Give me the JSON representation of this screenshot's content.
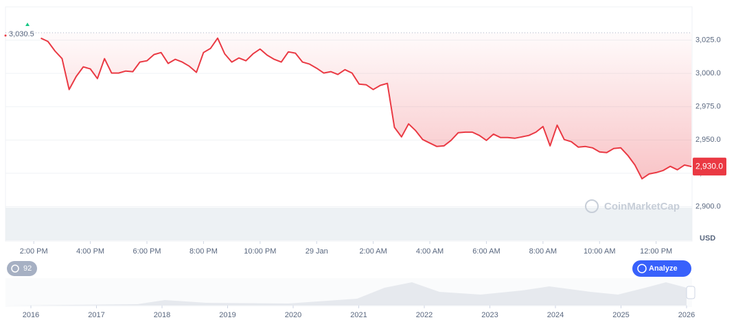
{
  "chart_data": {
    "type": "line",
    "color": "#ea3943",
    "x": [
      14.25,
      14.5,
      14.75,
      15,
      15.25,
      15.5,
      15.75,
      16,
      16.25,
      16.5,
      16.75,
      17,
      17.25,
      17.5,
      17.75,
      18,
      18.25,
      18.5,
      18.75,
      19,
      19.25,
      19.5,
      19.75,
      20,
      20.25,
      20.5,
      20.75,
      21,
      21.25,
      21.5,
      21.75,
      22,
      22.25,
      22.5,
      22.75,
      23,
      23.25,
      23.5,
      23.75,
      24,
      24.25,
      24.5,
      24.75,
      25,
      25.25,
      25.5,
      25.75,
      26,
      26.25,
      26.5,
      26.75,
      27,
      27.25,
      27.5,
      27.75,
      28,
      28.25,
      28.5,
      28.75,
      29,
      29.25,
      29.5,
      29.75,
      30,
      30.25,
      30.5,
      30.75,
      31,
      31.25,
      31.5,
      31.75,
      32,
      32.25,
      32.5,
      32.75,
      33,
      33.25,
      33.5,
      33.75,
      34,
      34.25,
      34.5,
      34.75,
      35,
      35.25,
      35.5,
      35.75,
      36,
      36.25,
      36.5,
      36.75,
      37,
      37.25
    ],
    "values": [
      3026.5,
      3024.0,
      3016.8,
      3011.1,
      2987.9,
      2997.7,
      3004.9,
      3003.4,
      2996.1,
      3011.1,
      3000.3,
      3000.3,
      3001.8,
      3001.3,
      3008.5,
      3009.5,
      3014.2,
      3015.7,
      3007.5,
      3010.6,
      3008.5,
      3005.4,
      3000.8,
      3015.7,
      3018.8,
      3026.5,
      3014.7,
      3008.5,
      3011.6,
      3009.5,
      3014.7,
      3018.3,
      3013.7,
      3010.6,
      3008.5,
      3016.2,
      3015.2,
      3008.5,
      3007.0,
      3003.9,
      3000.3,
      3001.3,
      2999.2,
      3002.8,
      3000.3,
      2992.0,
      2991.5,
      2987.9,
      2991.0,
      2992.5,
      2959.5,
      2952.3,
      2962.1,
      2957.0,
      2950.3,
      2947.7,
      2945.1,
      2945.6,
      2949.7,
      2955.4,
      2955.9,
      2955.9,
      2953.4,
      2949.7,
      2954.4,
      2951.8,
      2951.8,
      2951.3,
      2952.3,
      2953.4,
      2955.9,
      2960.1,
      2945.6,
      2961.1,
      2950.3,
      2948.7,
      2944.6,
      2945.1,
      2944.1,
      2941.0,
      2940.5,
      2943.6,
      2944.1,
      2938.4,
      2931.2,
      2920.9,
      2924.5,
      2925.5,
      2927.1,
      2930.2,
      2927.6,
      2931.2,
      2930.0
    ],
    "xlim": [
      13,
      37.27
    ],
    "xticks": [
      {
        "value": 14,
        "label": "2:00 PM"
      },
      {
        "value": 16,
        "label": "4:00 PM"
      },
      {
        "value": 18,
        "label": "6:00 PM"
      },
      {
        "value": 20,
        "label": "8:00 PM"
      },
      {
        "value": 22,
        "label": "10:00 PM"
      },
      {
        "value": 24,
        "label": "29 Jan"
      },
      {
        "value": 26,
        "label": "2:00 AM"
      },
      {
        "value": 28,
        "label": "4:00 AM"
      },
      {
        "value": 30,
        "label": "6:00 AM"
      },
      {
        "value": 32,
        "label": "8:00 AM"
      },
      {
        "value": 34,
        "label": "10:00 AM"
      },
      {
        "value": 36,
        "label": "12:00 PM"
      }
    ],
    "ylim": [
      2874,
      3050
    ],
    "yticks": [
      {
        "value": 2900,
        "label": "2,900.0"
      },
      {
        "value": 2925,
        "label": "2,925.0"
      },
      {
        "value": 2950,
        "label": "2,950.0"
      },
      {
        "value": 2975,
        "label": "2,975.0"
      },
      {
        "value": 3000,
        "label": "3,000.0"
      },
      {
        "value": 3025,
        "label": "3,025.0"
      }
    ],
    "grid": true,
    "y_axis_label": "USD",
    "reference_line": {
      "value": 3030.5,
      "label": "3,030.5"
    },
    "last_price": {
      "value": 2930.0,
      "label": "2,930.0"
    },
    "navigator_years": [
      2016,
      2017,
      2018,
      2019,
      2020,
      2021,
      2022,
      2023,
      2024,
      2025,
      2026
    ]
  },
  "ui": {
    "badge": "92",
    "analyze": "Analyze",
    "watermark": "CoinMarketCap"
  }
}
